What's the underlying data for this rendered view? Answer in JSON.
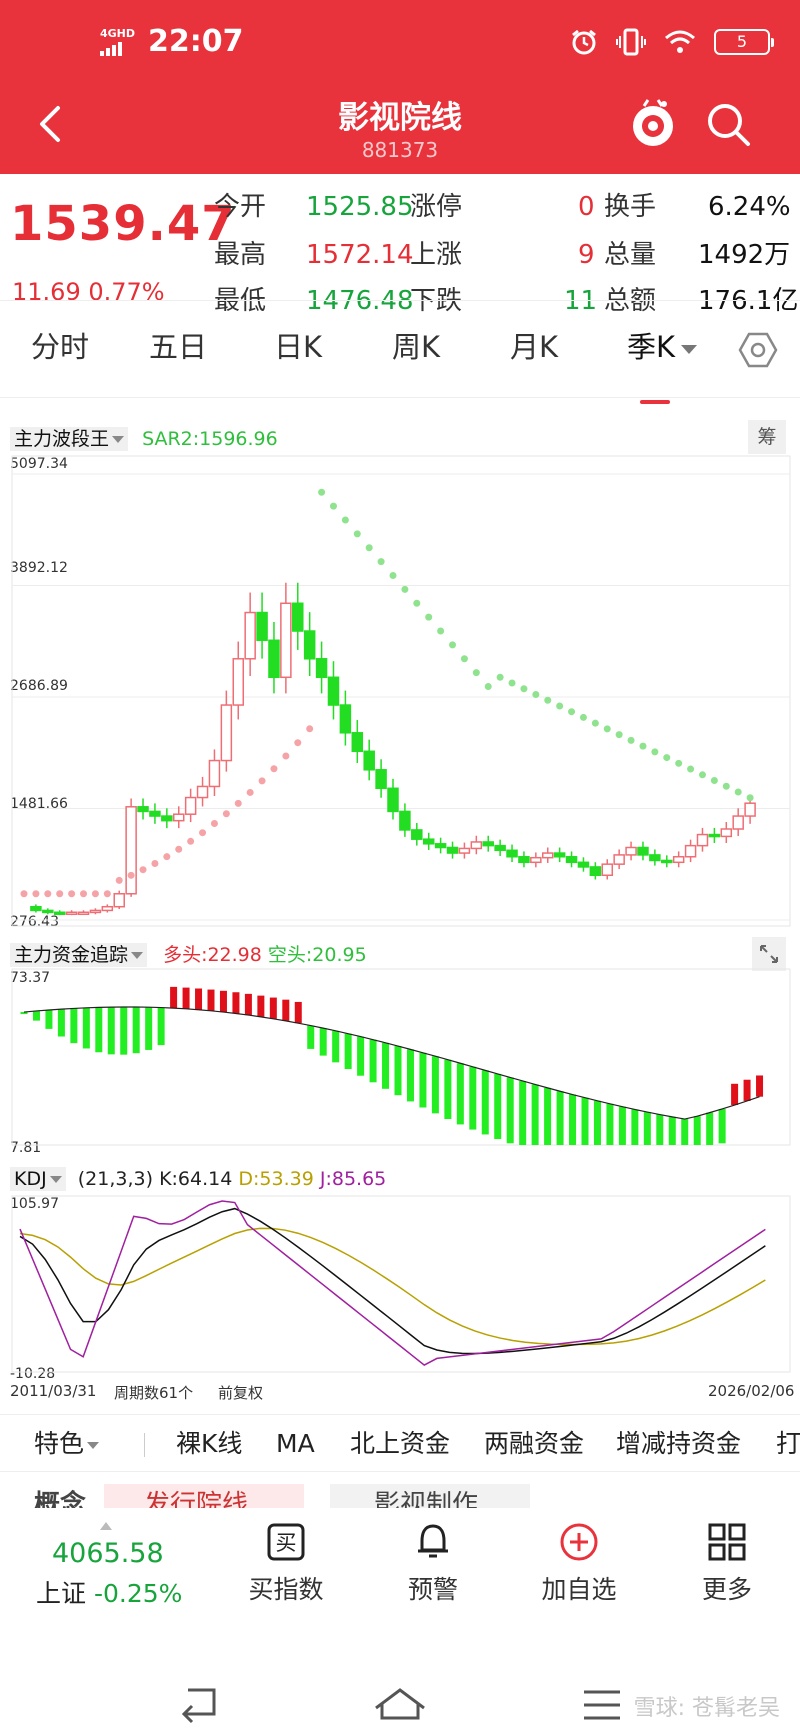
{
  "status_bar": {
    "network": "4GHD",
    "time": "22:07",
    "battery": "5"
  },
  "header": {
    "title": "影视院线",
    "code": "881373",
    "back_icon": "back-arrow-icon",
    "robot_icon": "robot-assistant-icon",
    "search_icon": "search-icon"
  },
  "quote": {
    "price": "1539.47",
    "change": "11.69",
    "change_pct": "0.77%",
    "open": {
      "label": "今开",
      "value": "1525.85"
    },
    "high": {
      "label": "最高",
      "value": "1572.14"
    },
    "low": {
      "label": "最低",
      "value": "1476.48"
    },
    "limit_up": {
      "label": "涨停",
      "value": "0"
    },
    "rising": {
      "label": "上涨",
      "value": "9"
    },
    "falling": {
      "label": "下跌",
      "value": "11"
    },
    "turnover": {
      "label": "换手",
      "value": "6.24%"
    },
    "volume": {
      "label": "总量",
      "value": "1492万"
    },
    "amount": {
      "label": "总额",
      "value": "176.1亿"
    }
  },
  "tabs": [
    "分时",
    "五日",
    "日K",
    "周K",
    "月K",
    "季K"
  ],
  "active_tab": "季K",
  "settings_icon": "hexagon-settings-icon",
  "main_chart": {
    "indicator": "主力波段王",
    "sar_label": "SAR2:1596.96",
    "chip_label": "筹",
    "y_ticks": [
      "5097.34",
      "3892.12",
      "2686.89",
      "1481.66",
      "276.43"
    ]
  },
  "fund_chart": {
    "indicator": "主力资金追踪",
    "long_label": "多头:22.98",
    "short_label": "空头:20.95",
    "expand_icon": "expand-icon",
    "y_max": "73.37",
    "y_min": "7.81"
  },
  "kdj_chart": {
    "indicator": "KDJ",
    "params": "(21,3,3)",
    "k": "K:64.14",
    "d": "D:53.39",
    "j": "J:85.65",
    "y_max": "105.97",
    "y_min": "-10.28"
  },
  "chart_footer": {
    "start": "2011/03/31",
    "periods": "周期数61个",
    "adjust": "前复权",
    "end": "2026/02/06"
  },
  "chart_data": [
    {
      "type": "candlestick",
      "title": "主力波段王",
      "ylim": [
        276.43,
        5097.34
      ],
      "y_ticks": [
        276.43,
        1481.66,
        2686.89,
        3892.12,
        5097.34
      ],
      "x_range": [
        "2011/03/31",
        "2026/02/06"
      ],
      "periods": 61,
      "last_close": 1539.47,
      "sar2_last": 1596.96,
      "grid": true
    },
    {
      "type": "bar",
      "title": "主力资金追踪",
      "ylim": [
        7.81,
        73.37
      ],
      "series": [
        {
          "name": "多头",
          "last": 22.98
        },
        {
          "name": "空头",
          "last": 20.95
        }
      ]
    },
    {
      "type": "line",
      "title": "KDJ",
      "ylim": [
        -10.28,
        105.97
      ],
      "series": [
        {
          "name": "K",
          "last": 64.14
        },
        {
          "name": "D",
          "last": 53.39
        },
        {
          "name": "J",
          "last": 85.65
        }
      ]
    }
  ],
  "features": [
    "特色",
    "裸K线",
    "MA",
    "北上资金",
    "两融资金",
    "增减持资金",
    "打"
  ],
  "peek_items": [
    "概念",
    "发行院线",
    "影视制作"
  ],
  "toolbar": {
    "index_value": "4065.58",
    "index_name": "上证",
    "index_change": "-0.25%",
    "buy_index": "买指数",
    "alert": "预警",
    "add_watch": "加自选",
    "more": "更多",
    "buy_icon_char": "买"
  },
  "watermark": "雪球: 苍髯老吴",
  "colors": {
    "brand_red": "#e8323c",
    "up_red": "#e52e36",
    "down_green": "#18a43c",
    "bar_green": "#22ee22"
  }
}
